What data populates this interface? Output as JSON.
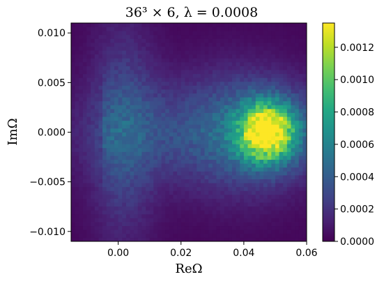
{
  "chart_data": {
    "type": "heatmap",
    "title": "36³ × 6, λ = 0.0008",
    "xlabel": "ReΩ",
    "ylabel": "ImΩ",
    "xlim": [
      -0.015,
      0.06
    ],
    "ylim": [
      -0.011,
      0.011
    ],
    "x_ticks": [
      {
        "value": 0.0,
        "label": "0.00"
      },
      {
        "value": 0.02,
        "label": "0.02"
      },
      {
        "value": 0.04,
        "label": "0.04"
      },
      {
        "value": 0.06,
        "label": "0.06"
      }
    ],
    "y_ticks": [
      {
        "value": 0.01,
        "label": "0.010"
      },
      {
        "value": 0.005,
        "label": "0.005"
      },
      {
        "value": 0.0,
        "label": "0.000"
      },
      {
        "value": -0.005,
        "label": "−0.005"
      },
      {
        "value": -0.01,
        "label": "−0.010"
      }
    ],
    "colormap": "viridis",
    "colorbar": {
      "vmin": 0.0,
      "vmax": 0.00135,
      "ticks": [
        {
          "value": 0.0,
          "label": "0.0000"
        },
        {
          "value": 0.0002,
          "label": "0.0002"
        },
        {
          "value": 0.0004,
          "label": "0.0004"
        },
        {
          "value": 0.0006,
          "label": "0.0006"
        },
        {
          "value": 0.0008,
          "label": "0.0008"
        },
        {
          "value": 0.001,
          "label": "0.0010"
        },
        {
          "value": 0.0012,
          "label": "0.0012"
        }
      ]
    },
    "bins": {
      "nx": 60,
      "ny": 56
    },
    "density_model": {
      "peak": {
        "x": 0.0475,
        "y": 0.0,
        "sx": 0.0062,
        "sy": 0.0021,
        "amp": 0.00122
      },
      "broad_glow": {
        "x": 0.038,
        "y": 0.0,
        "sx": 0.014,
        "sy": 0.0045,
        "amp": 0.00028
      },
      "vertical_band": {
        "x": 0.0015,
        "sx": 0.0075,
        "sy": 0.0072,
        "amp": 0.00026,
        "sy_decay": 0.008
      },
      "horizontal_band": {
        "sy": 0.0034,
        "amp": 0.0002
      },
      "background": 2e-05
    }
  }
}
